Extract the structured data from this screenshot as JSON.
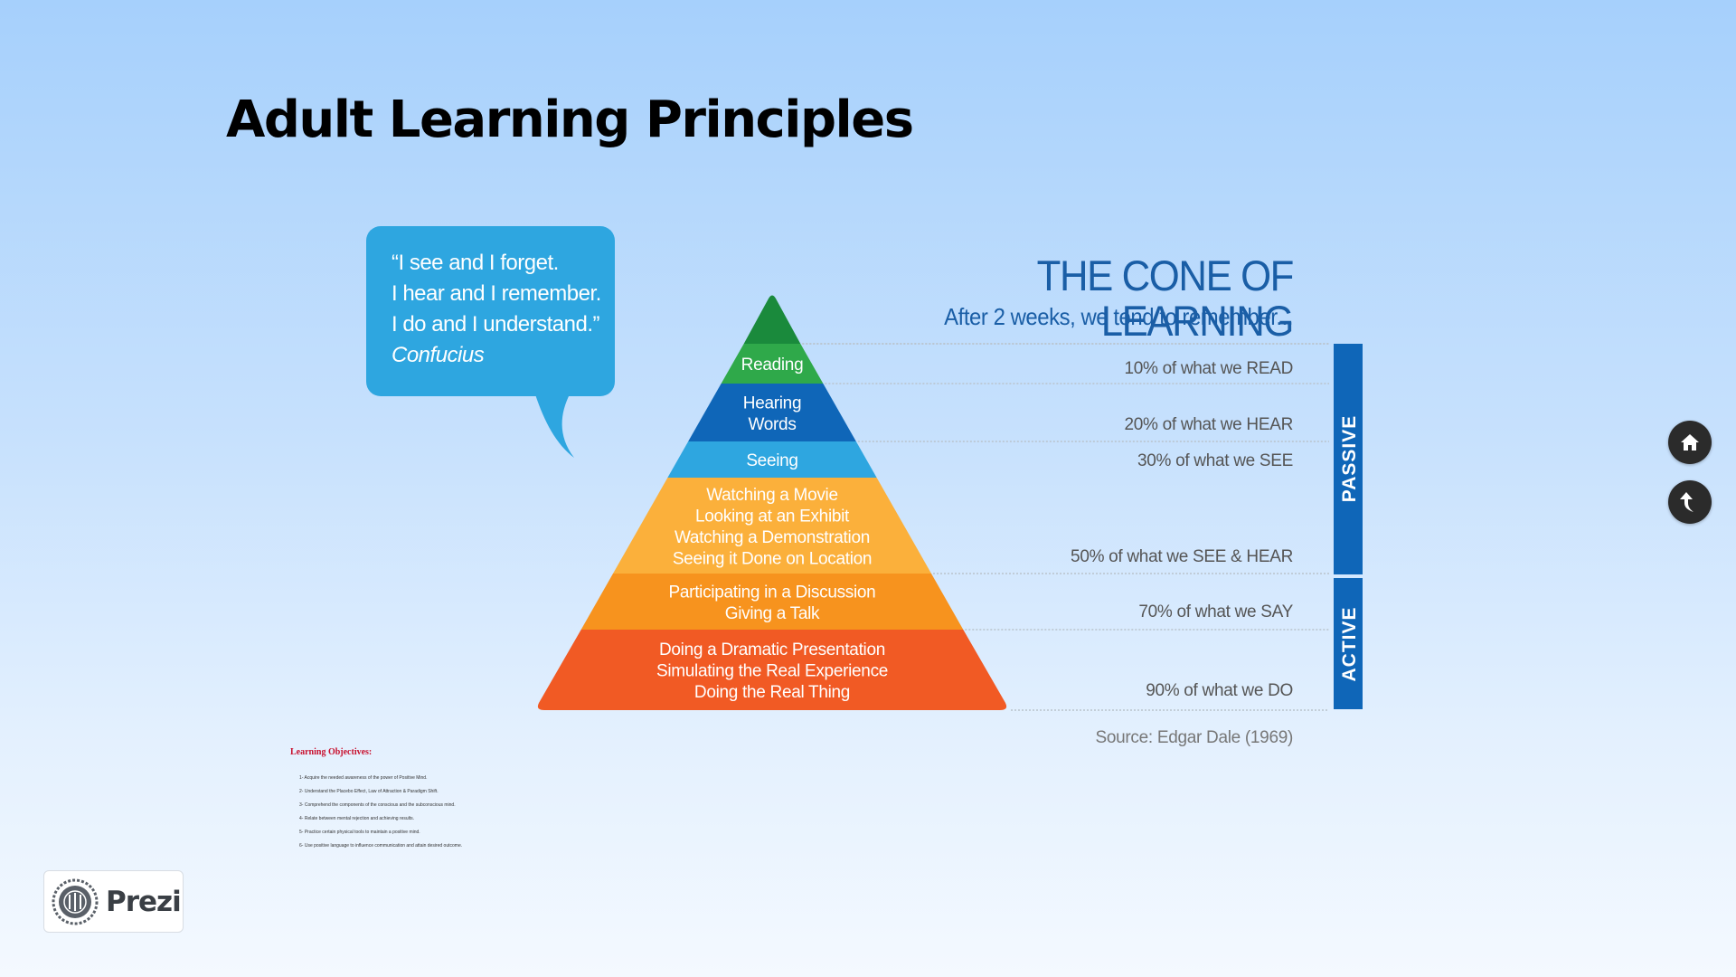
{
  "title": "Adult Learning Principles",
  "quote": {
    "lines": [
      "“I see and I forget.",
      "I hear and I remember.",
      "I do and I understand.”"
    ],
    "author": "Confucius"
  },
  "cone": {
    "title": "THE CONE OF LEARNING",
    "subtitle": "After 2 weeks, we tend to remember...",
    "layers": [
      {
        "lines": [
          "Reading"
        ],
        "color": "#2fa94a",
        "retention": "10% of what we READ"
      },
      {
        "lines": [
          "Hearing",
          "Words"
        ],
        "color": "#0f66b8",
        "retention": "20% of what we HEAR"
      },
      {
        "lines": [
          "Seeing"
        ],
        "color": "#2ea6e0",
        "retention": "30% of what we SEE"
      },
      {
        "lines": [
          "Watching a Movie",
          "Looking at an Exhibit",
          "Watching a Demonstration",
          "Seeing it Done on Location"
        ],
        "color": "#fbb03b",
        "retention": "50% of what we SEE & HEAR"
      },
      {
        "lines": [
          "Participating in a Discussion",
          "Giving a Talk"
        ],
        "color": "#f7931e",
        "retention": "70% of what we SAY"
      },
      {
        "lines": [
          "Doing a Dramatic Presentation",
          "Simulating the Real Experience",
          "Doing the Real Thing"
        ],
        "color": "#f15a24",
        "retention": "90% of what we DO"
      }
    ],
    "apex_color": "#1a8a3c",
    "side_labels": {
      "passive": "PASSIVE",
      "active": "ACTIVE",
      "color": "#0f66b8"
    },
    "source": "Source: Edgar Dale (1969)"
  },
  "objectives": {
    "heading": "Learning Objectives:",
    "items": [
      "1- Acquire the needed awareness of the power of Positive Mind.",
      "2- Understand the Placebo Effect, Law of Attraction & Paradigm Shift.",
      "3- Comprehend the components of the conscious and the subconscious mind.",
      "4- Relate between mental rejection and achieving results.",
      "5- Practice certain physical tools to maintain a positive mind.",
      "6- Use positive language to influence communication and attain desired outcome."
    ]
  },
  "nav": {
    "home_icon": "home-icon",
    "back_icon": "back-arrow-icon"
  },
  "brand": {
    "name": "Prezi"
  }
}
